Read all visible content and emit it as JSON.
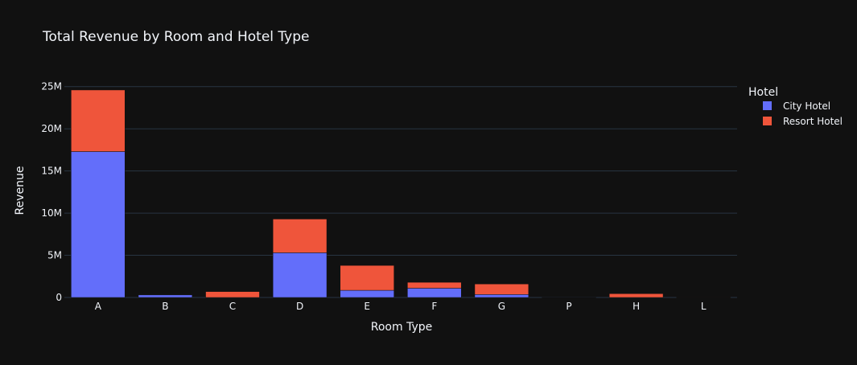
{
  "chart_data": {
    "type": "bar",
    "barmode": "stack",
    "title": "Total Revenue by Room and Hotel Type",
    "xlabel": "Room Type",
    "ylabel": "Revenue",
    "categories": [
      "A",
      "B",
      "C",
      "D",
      "E",
      "F",
      "G",
      "P",
      "H",
      "L"
    ],
    "ylim": [
      0,
      26500000
    ],
    "yticks": [
      0,
      5000000,
      10000000,
      15000000,
      20000000,
      25000000
    ],
    "ytick_labels": [
      "0",
      "5M",
      "10M",
      "15M",
      "20M",
      "25M"
    ],
    "grid": true,
    "legend": {
      "title": "Hotel",
      "position": "top-right"
    },
    "series": [
      {
        "name": "City Hotel",
        "color": "#636efa",
        "values": [
          17300000,
          300000,
          0,
          5300000,
          850000,
          1100000,
          350000,
          10000,
          0,
          0
        ]
      },
      {
        "name": "Resort Hotel",
        "color": "#ef553b",
        "values": [
          7300000,
          0,
          700000,
          4000000,
          2950000,
          700000,
          1250000,
          0,
          450000,
          20000
        ]
      }
    ]
  },
  "colors": {
    "background": "#111111",
    "grid": "#283442",
    "text": "#f2f5fa",
    "bar_outline": "#111111"
  }
}
